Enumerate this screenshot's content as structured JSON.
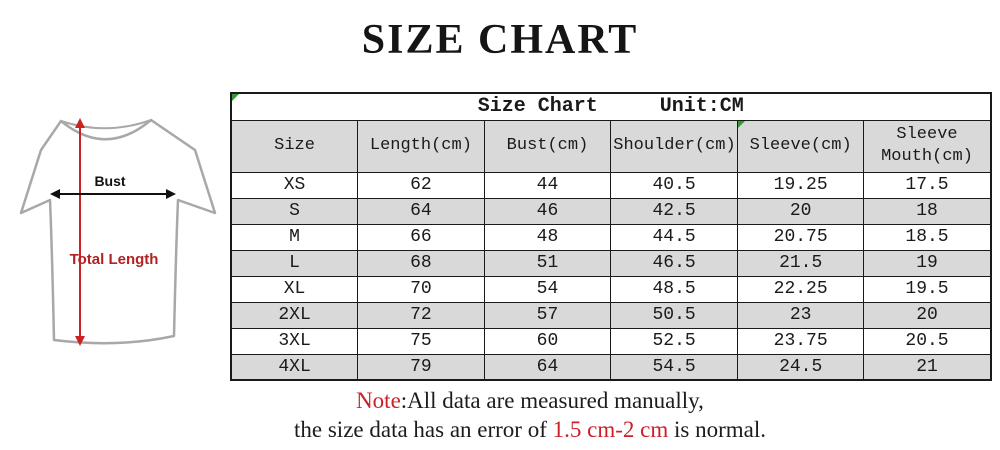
{
  "page": {
    "title": "SIZE CHART"
  },
  "diagram": {
    "bust_label": "Bust",
    "total_length_label": "Total Length"
  },
  "table": {
    "title": "Size Chart",
    "unit": "Unit:CM",
    "columns": [
      "Size",
      "Length(cm)",
      "Bust(cm)",
      "Shoulder(cm)",
      "Sleeve(cm)",
      "Sleeve Mouth(cm)"
    ],
    "rows": [
      [
        "XS",
        "62",
        "44",
        "40.5",
        "19.25",
        "17.5"
      ],
      [
        "S",
        "64",
        "46",
        "42.5",
        "20",
        "18"
      ],
      [
        "M",
        "66",
        "48",
        "44.5",
        "20.75",
        "18.5"
      ],
      [
        "L",
        "68",
        "51",
        "46.5",
        "21.5",
        "19"
      ],
      [
        "XL",
        "70",
        "54",
        "48.5",
        "22.25",
        "19.5"
      ],
      [
        "2XL",
        "72",
        "57",
        "50.5",
        "23",
        "20"
      ],
      [
        "3XL",
        "75",
        "60",
        "52.5",
        "23.75",
        "20.5"
      ],
      [
        "4XL",
        "79",
        "64",
        "54.5",
        "24.5",
        "21"
      ]
    ]
  },
  "note": {
    "prefix": "Note",
    "line1_rest": ":All data are measured manually,",
    "line2_part1": "the size data has an error of ",
    "highlight": "1.5 cm-2 cm",
    "line2_part3": " is normal."
  },
  "colors": {
    "accent_red": "#cc2028",
    "diagram_red": "#b22222",
    "row_alt_bg": "#d9d9d9",
    "border": "#1a1a1a",
    "corner_green": "#339933"
  }
}
